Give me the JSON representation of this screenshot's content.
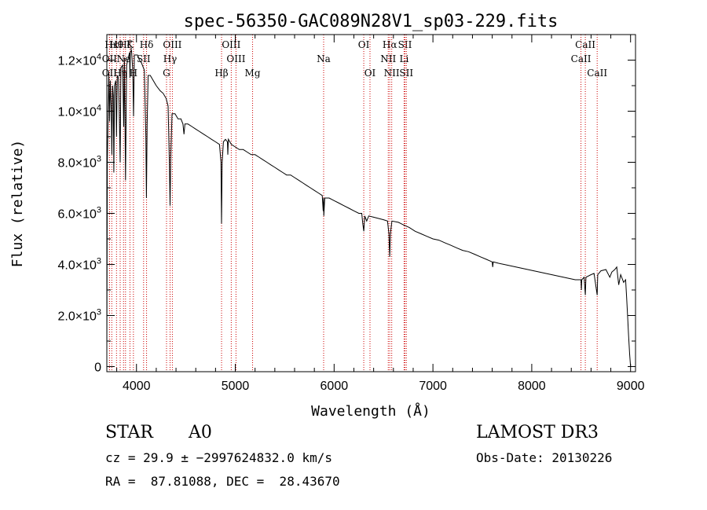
{
  "chart_data": {
    "type": "line",
    "title": "spec-56350-GAC089N28V1_sp03-229.fits",
    "xlabel": "Wavelength (Å)",
    "ylabel": "Flux (relative)",
    "xlim": [
      3700,
      9050
    ],
    "ylim": [
      -200,
      13000
    ],
    "x_ticks": [
      {
        "value": 4000,
        "label": "4000"
      },
      {
        "value": 5000,
        "label": "5000"
      },
      {
        "value": 6000,
        "label": "6000"
      },
      {
        "value": 7000,
        "label": "7000"
      },
      {
        "value": 8000,
        "label": "8000"
      },
      {
        "value": 9000,
        "label": "9000"
      }
    ],
    "y_ticks": [
      {
        "value": 0,
        "mant": "0",
        "exp": ""
      },
      {
        "value": 2000,
        "mant": "2.0×10",
        "exp": "3"
      },
      {
        "value": 4000,
        "mant": "4.0×10",
        "exp": "3"
      },
      {
        "value": 6000,
        "mant": "6.0×10",
        "exp": "3"
      },
      {
        "value": 8000,
        "mant": "8.0×10",
        "exp": "3"
      },
      {
        "value": 10000,
        "mant": "1.0×10",
        "exp": "4"
      },
      {
        "value": 12000,
        "mant": "1.2×10",
        "exp": "4"
      }
    ],
    "series": [
      {
        "name": "spectrum",
        "points": [
          [
            3700,
            500
          ],
          [
            3705,
            8000
          ],
          [
            3720,
            11500
          ],
          [
            3728,
            9600
          ],
          [
            3735,
            11200
          ],
          [
            3745,
            10000
          ],
          [
            3751,
            8300
          ],
          [
            3758,
            11000
          ],
          [
            3765,
            10600
          ],
          [
            3771,
            7600
          ],
          [
            3778,
            11000
          ],
          [
            3790,
            11200
          ],
          [
            3798,
            9000
          ],
          [
            3806,
            11400
          ],
          [
            3818,
            11300
          ],
          [
            3825,
            10200
          ],
          [
            3835,
            8000
          ],
          [
            3842,
            11700
          ],
          [
            3860,
            11800
          ],
          [
            3871,
            9400
          ],
          [
            3878,
            12100
          ],
          [
            3889,
            7300
          ],
          [
            3900,
            11800
          ],
          [
            3930,
            12300
          ],
          [
            3934,
            11300
          ],
          [
            3938,
            12300
          ],
          [
            3950,
            12400
          ],
          [
            3962,
            11600
          ],
          [
            3970,
            9800
          ],
          [
            3978,
            12200
          ],
          [
            3995,
            12200
          ],
          [
            4010,
            12200
          ],
          [
            4030,
            12000
          ],
          [
            4050,
            11900
          ],
          [
            4080,
            11600
          ],
          [
            4095,
            9000
          ],
          [
            4101,
            6600
          ],
          [
            4108,
            9500
          ],
          [
            4118,
            11400
          ],
          [
            4140,
            11400
          ],
          [
            4170,
            11200
          ],
          [
            4200,
            11000
          ],
          [
            4240,
            10800
          ],
          [
            4270,
            10700
          ],
          [
            4300,
            10500
          ],
          [
            4320,
            10200
          ],
          [
            4333,
            8000
          ],
          [
            4340,
            6300
          ],
          [
            4346,
            8100
          ],
          [
            4360,
            9900
          ],
          [
            4390,
            9900
          ],
          [
            4420,
            9700
          ],
          [
            4450,
            9700
          ],
          [
            4470,
            9500
          ],
          [
            4481,
            9100
          ],
          [
            4490,
            9500
          ],
          [
            4520,
            9500
          ],
          [
            4560,
            9400
          ],
          [
            4600,
            9300
          ],
          [
            4640,
            9200
          ],
          [
            4680,
            9100
          ],
          [
            4720,
            9000
          ],
          [
            4760,
            8900
          ],
          [
            4800,
            8800
          ],
          [
            4840,
            8700
          ],
          [
            4855,
            8000
          ],
          [
            4861,
            5600
          ],
          [
            4867,
            8000
          ],
          [
            4880,
            8800
          ],
          [
            4900,
            8900
          ],
          [
            4920,
            8800
          ],
          [
            4924,
            8300
          ],
          [
            4930,
            8900
          ],
          [
            4960,
            8700
          ],
          [
            5000,
            8600
          ],
          [
            5040,
            8500
          ],
          [
            5080,
            8500
          ],
          [
            5120,
            8400
          ],
          [
            5160,
            8300
          ],
          [
            5200,
            8300
          ],
          [
            5240,
            8200
          ],
          [
            5280,
            8100
          ],
          [
            5320,
            8000
          ],
          [
            5360,
            7900
          ],
          [
            5400,
            7800
          ],
          [
            5440,
            7700
          ],
          [
            5480,
            7600
          ],
          [
            5520,
            7500
          ],
          [
            5560,
            7500
          ],
          [
            5600,
            7400
          ],
          [
            5640,
            7300
          ],
          [
            5680,
            7200
          ],
          [
            5720,
            7100
          ],
          [
            5760,
            7000
          ],
          [
            5800,
            6900
          ],
          [
            5840,
            6800
          ],
          [
            5880,
            6700
          ],
          [
            5889,
            6100
          ],
          [
            5893,
            6600
          ],
          [
            5896,
            5900
          ],
          [
            5905,
            6600
          ],
          [
            5950,
            6600
          ],
          [
            6000,
            6500
          ],
          [
            6050,
            6400
          ],
          [
            6100,
            6300
          ],
          [
            6150,
            6200
          ],
          [
            6200,
            6100
          ],
          [
            6250,
            6000
          ],
          [
            6280,
            6000
          ],
          [
            6290,
            5600
          ],
          [
            6300,
            5300
          ],
          [
            6310,
            5900
          ],
          [
            6330,
            5700
          ],
          [
            6350,
            5900
          ],
          [
            6400,
            5850
          ],
          [
            6450,
            5800
          ],
          [
            6500,
            5750
          ],
          [
            6540,
            5700
          ],
          [
            6555,
            5200
          ],
          [
            6563,
            4300
          ],
          [
            6570,
            5200
          ],
          [
            6585,
            5700
          ],
          [
            6650,
            5650
          ],
          [
            6700,
            5550
          ],
          [
            6760,
            5450
          ],
          [
            6820,
            5300
          ],
          [
            6880,
            5200
          ],
          [
            6940,
            5100
          ],
          [
            7000,
            5000
          ],
          [
            7060,
            4950
          ],
          [
            7120,
            4850
          ],
          [
            7180,
            4750
          ],
          [
            7240,
            4650
          ],
          [
            7300,
            4550
          ],
          [
            7360,
            4500
          ],
          [
            7420,
            4400
          ],
          [
            7480,
            4300
          ],
          [
            7540,
            4200
          ],
          [
            7600,
            4100
          ],
          [
            7605,
            3900
          ],
          [
            7610,
            4100
          ],
          [
            7660,
            4050
          ],
          [
            7720,
            4000
          ],
          [
            7780,
            3950
          ],
          [
            7840,
            3900
          ],
          [
            7900,
            3850
          ],
          [
            7960,
            3800
          ],
          [
            8020,
            3750
          ],
          [
            8080,
            3700
          ],
          [
            8140,
            3650
          ],
          [
            8200,
            3600
          ],
          [
            8260,
            3550
          ],
          [
            8320,
            3500
          ],
          [
            8380,
            3450
          ],
          [
            8440,
            3400
          ],
          [
            8498,
            3400
          ],
          [
            8502,
            3000
          ],
          [
            8506,
            3400
          ],
          [
            8530,
            3500
          ],
          [
            8542,
            2800
          ],
          [
            8548,
            3500
          ],
          [
            8600,
            3600
          ],
          [
            8630,
            3650
          ],
          [
            8662,
            2800
          ],
          [
            8668,
            3600
          ],
          [
            8700,
            3750
          ],
          [
            8750,
            3800
          ],
          [
            8790,
            3500
          ],
          [
            8810,
            3700
          ],
          [
            8840,
            3800
          ],
          [
            8860,
            3900
          ],
          [
            8880,
            3200
          ],
          [
            8900,
            3600
          ],
          [
            8930,
            3300
          ],
          [
            8950,
            3400
          ],
          [
            8960,
            2700
          ],
          [
            8970,
            2000
          ],
          [
            8980,
            1200
          ],
          [
            8990,
            500
          ],
          [
            9000,
            0
          ]
        ]
      }
    ],
    "spectral_lines": [
      {
        "label": "Hκ",
        "wavelength": 3750,
        "row": 0
      },
      {
        "label": "OII",
        "wavelength": 3727,
        "row": 1
      },
      {
        "label": "OII",
        "wavelength": 3727,
        "row": 2
      },
      {
        "label": "Hθ",
        "wavelength": 3798,
        "row": 0
      },
      {
        "label": "Hη",
        "wavelength": 3835,
        "row": 2
      },
      {
        "label": "Hζ",
        "wavelength": 3889,
        "row": 0
      },
      {
        "label": "Ne",
        "wavelength": 3869,
        "row": 1
      },
      {
        "label": "K",
        "wavelength": 3934,
        "row": 0
      },
      {
        "label": "SII",
        "wavelength": 4072,
        "row": 1
      },
      {
        "label": "H",
        "wavelength": 3969,
        "row": 2
      },
      {
        "label": "Hδ",
        "wavelength": 4102,
        "row": 0
      },
      {
        "label": "OIII",
        "wavelength": 4363,
        "row": 0
      },
      {
        "label": "Hγ",
        "wavelength": 4340,
        "row": 1
      },
      {
        "label": "G",
        "wavelength": 4304,
        "row": 2
      },
      {
        "label": "Hβ",
        "wavelength": 4861,
        "row": 2
      },
      {
        "label": "OIII",
        "wavelength": 4959,
        "row": 0
      },
      {
        "label": "OIII",
        "wavelength": 5007,
        "row": 1
      },
      {
        "label": "Mg",
        "wavelength": 5175,
        "row": 2
      },
      {
        "label": "Na",
        "wavelength": 5894,
        "row": 1
      },
      {
        "label": "OI",
        "wavelength": 6300,
        "row": 0
      },
      {
        "label": "OI",
        "wavelength": 6363,
        "row": 2
      },
      {
        "label": "Hα",
        "wavelength": 6563,
        "row": 0
      },
      {
        "label": "NII",
        "wavelength": 6548,
        "row": 1
      },
      {
        "label": "NII",
        "wavelength": 6583,
        "row": 2
      },
      {
        "label": "SII",
        "wavelength": 6717,
        "row": 0
      },
      {
        "label": "Li",
        "wavelength": 6708,
        "row": 1
      },
      {
        "label": "SII",
        "wavelength": 6731,
        "row": 2
      },
      {
        "label": "CaII",
        "wavelength": 8542,
        "row": 0
      },
      {
        "label": "CaII",
        "wavelength": 8498,
        "row": 1
      },
      {
        "label": "CaII",
        "wavelength": 8662,
        "row": 2
      }
    ]
  },
  "info": {
    "class_label": "STAR",
    "subclass": "A0",
    "survey": "LAMOST DR3",
    "redshift_line": "cz = 29.9 ± −2997624832.0 km/s",
    "obs_date_line": "Obs-Date: 20130226",
    "coord_line": "RA =  87.81088, DEC =  28.43670"
  }
}
